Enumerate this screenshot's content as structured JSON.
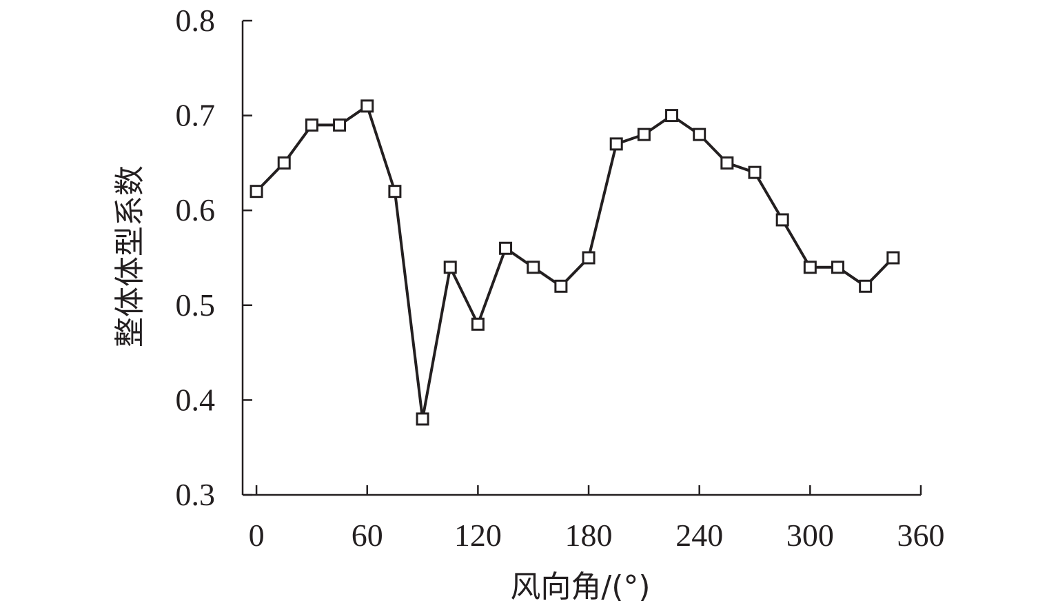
{
  "chart_data": {
    "type": "line",
    "title": "",
    "xlabel": "风向角/(°)",
    "ylabel": "整体体型系数",
    "xlim": [
      -7.5,
      360
    ],
    "ylim": [
      0.3,
      0.8
    ],
    "xticks": [
      0,
      60,
      120,
      180,
      240,
      300,
      360
    ],
    "yticks": [
      0.3,
      0.4,
      0.5,
      0.6,
      0.7,
      0.8
    ],
    "grid": false,
    "legend": "none",
    "series": [
      {
        "marker": "open-square",
        "color": "#231f20",
        "x": [
          0,
          15,
          30,
          45,
          60,
          75,
          90,
          105,
          120,
          135,
          150,
          165,
          180,
          195,
          210,
          225,
          240,
          255,
          270,
          285,
          300,
          315,
          330,
          345
        ],
        "y": [
          0.62,
          0.65,
          0.69,
          0.69,
          0.71,
          0.62,
          0.38,
          0.54,
          0.48,
          0.56,
          0.54,
          0.52,
          0.55,
          0.67,
          0.68,
          0.7,
          0.68,
          0.65,
          0.64,
          0.59,
          0.54,
          0.54,
          0.52,
          0.55
        ]
      }
    ]
  }
}
